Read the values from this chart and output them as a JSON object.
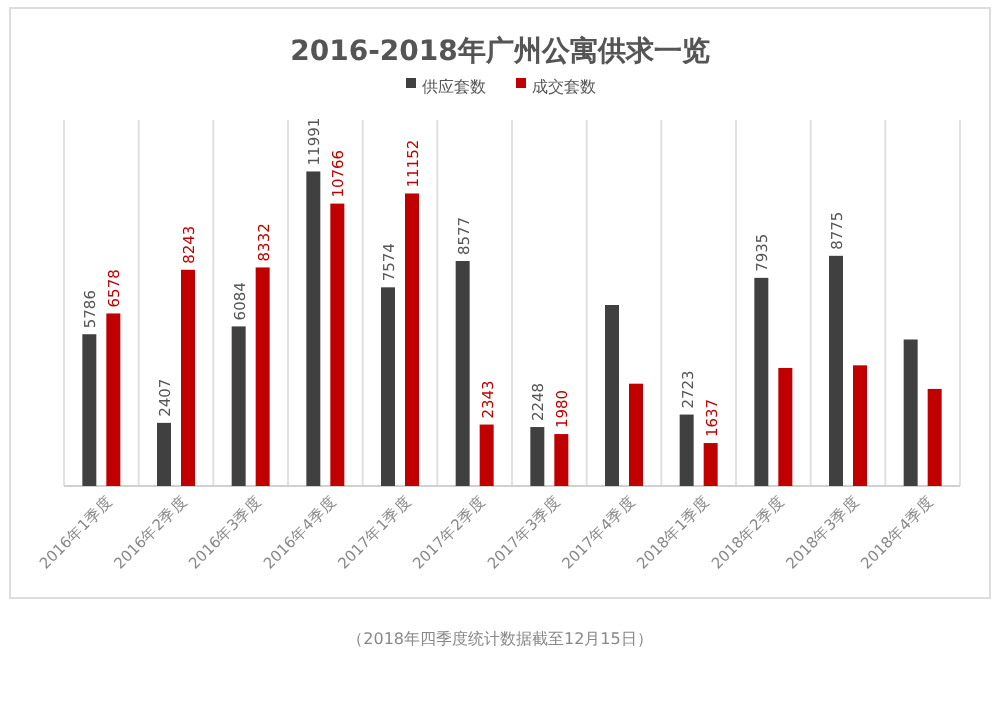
{
  "chart_data": {
    "type": "bar",
    "title": "2016-2018年广州公寓供求一览",
    "categories": [
      "2016年1季度",
      "2016年2季度",
      "2016年3季度",
      "2016年4季度",
      "2017年1季度",
      "2017年2季度",
      "2017年3季度",
      "2017年4季度",
      "2018年1季度",
      "2018年2季度",
      "2018年3季度",
      "2018年4季度"
    ],
    "series": [
      {
        "name": "供应套数",
        "color": "#404040",
        "values": [
          5786,
          2407,
          6084,
          11991,
          7574,
          8577,
          2248,
          6900,
          2723,
          7935,
          8775,
          5585
        ],
        "value_labels": [
          "5786",
          "2407",
          "6084",
          "11991",
          "7574",
          "8577",
          "2248",
          null,
          "2723",
          "7935",
          "8775",
          null
        ]
      },
      {
        "name": "成交套数",
        "color": "#c00000",
        "values": [
          6578,
          8243,
          8332,
          10766,
          11152,
          2343,
          1980,
          3900,
          1637,
          4500,
          4600,
          3700
        ],
        "value_labels": [
          "6578",
          "8243",
          "8332",
          "10766",
          "11152",
          "2343",
          "1980",
          null,
          "1637",
          null,
          null,
          null
        ]
      }
    ],
    "grid": "x",
    "legend": "top",
    "tick_labels": "x",
    "annotations": [
      "（2018年四季度统计数据截至12月15日）"
    ]
  }
}
